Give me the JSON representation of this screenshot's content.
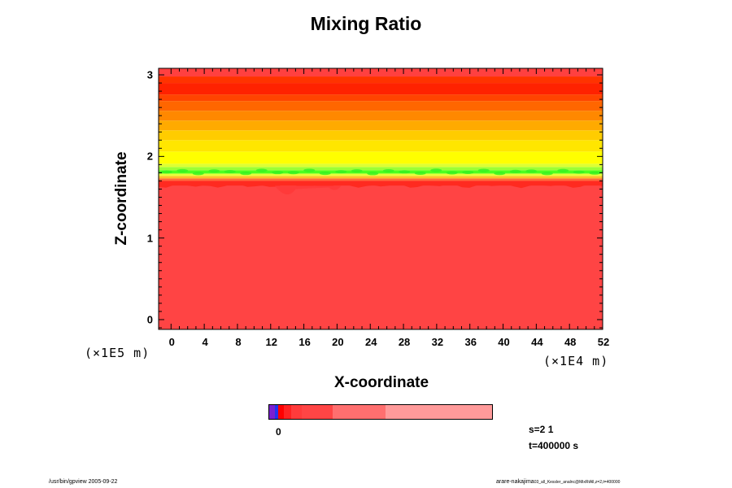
{
  "chart_data": {
    "type": "heatmap",
    "title": "Mixing Ratio",
    "xlabel": "X-coordinate",
    "ylabel": "Z-coordinate",
    "x_unit": "(×1E4 m)",
    "y_unit": "(×1E5 m)",
    "xlim": [
      -1.5,
      52
    ],
    "ylim": [
      -0.12,
      3.08
    ],
    "x_ticks": [
      0,
      4,
      8,
      12,
      16,
      20,
      24,
      28,
      32,
      36,
      40,
      44,
      48,
      52
    ],
    "y_ticks": [
      0,
      1,
      2,
      3
    ],
    "z_bands": [
      {
        "z0": -0.12,
        "z1": 1.64,
        "color": "#ff4444"
      },
      {
        "z0": 1.64,
        "z1": 1.7,
        "color": "#ff2a20"
      },
      {
        "z0": 1.7,
        "z1": 1.73,
        "color": "#ff6a3a"
      },
      {
        "z0": 1.73,
        "z1": 1.76,
        "color": "#ffc02a"
      },
      {
        "z0": 1.76,
        "z1": 1.79,
        "color": "#e6ff3a"
      },
      {
        "z0": 1.79,
        "z1": 1.83,
        "color": "#4cff20"
      },
      {
        "z0": 1.83,
        "z1": 1.87,
        "color": "#9cff33"
      },
      {
        "z0": 1.87,
        "z1": 1.91,
        "color": "#ddff33"
      },
      {
        "z0": 1.91,
        "z1": 2.06,
        "color": "#ffff00"
      },
      {
        "z0": 2.06,
        "z1": 2.2,
        "color": "#ffe600"
      },
      {
        "z0": 2.2,
        "z1": 2.32,
        "color": "#ffcc00"
      },
      {
        "z0": 2.32,
        "z1": 2.44,
        "color": "#ffaa00"
      },
      {
        "z0": 2.44,
        "z1": 2.56,
        "color": "#ff8800"
      },
      {
        "z0": 2.56,
        "z1": 2.68,
        "color": "#ff6600"
      },
      {
        "z0": 2.68,
        "z1": 2.76,
        "color": "#ff4400"
      },
      {
        "z0": 2.76,
        "z1": 2.9,
        "color": "#ff2200"
      },
      {
        "z0": 2.9,
        "z1": 2.98,
        "color": "#ff3300"
      },
      {
        "z0": 2.98,
        "z1": 3.08,
        "color": "#ff4040"
      }
    ],
    "colorbar": {
      "label": "0",
      "segments": [
        {
          "color": "#7a1fd0",
          "weight": 0.9
        },
        {
          "color": "#2233ee",
          "weight": 0.6
        },
        {
          "color": "#ff0000",
          "weight": 0.9
        },
        {
          "color": "#ff2222",
          "weight": 1.2
        },
        {
          "color": "#ff3b3b",
          "weight": 1.8
        },
        {
          "color": "#ff4545",
          "weight": 5.0
        },
        {
          "color": "#ff6f6f",
          "weight": 8.8
        },
        {
          "color": "#ff9a9a",
          "weight": 17.5
        }
      ]
    }
  },
  "info": {
    "s": "s=2 1",
    "t": "t=400000 s"
  },
  "footer": {
    "left": "/usr/bin/gpview 2005-09-22",
    "right_main": "arare-nakajima",
    "right_small": "03_all_Kessler_analnc@MixRtAll,z=2,t=400000"
  }
}
